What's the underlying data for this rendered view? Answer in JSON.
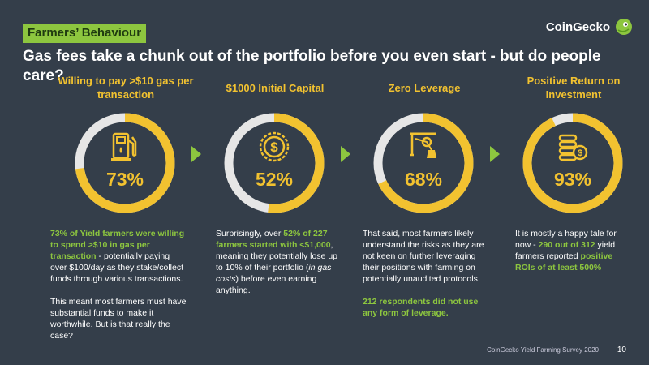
{
  "section_tag": "Farmers’ Behaviour",
  "brand": "CoinGecko",
  "headline": "Gas fees take a chunk out of the portfolio before you even start - but do people care?",
  "columns": [
    {
      "title": "Willing to pay >$10 gas per transaction",
      "percent": 73,
      "percent_label": "73%",
      "icon": "gas-pump-icon"
    },
    {
      "title": "$1000 Initial Capital",
      "percent": 52,
      "percent_label": "52%",
      "icon": "dollar-coin-icon"
    },
    {
      "title": "Zero Leverage",
      "percent": 68,
      "percent_label": "68%",
      "icon": "lever-pulley-icon"
    },
    {
      "title": "Positive Return on Investment",
      "percent": 93,
      "percent_label": "93%",
      "icon": "coin-stack-icon"
    }
  ],
  "texts": {
    "c1_b1": "73% of Yield farmers were willing to spend >$10 in gas per transaction",
    "c1_p1": " - potentially paying over $100/day as they stake/collect funds through various transactions.",
    "c1_p2": "This meant most farmers must have substantial funds to make it worthwhile. But is that really the case?",
    "c2_p1": "Surprisingly, over ",
    "c2_b1": "52% of 227 farmers started with <$1,000",
    "c2_p2": ", meaning they potentially lose up to 10% of their portfolio (",
    "c2_i1": "in gas costs",
    "c2_p3": ") before even earning anything.",
    "c3_p1": "That said, most farmers likely understand the risks as they are not keen on further leveraging their positions with farming on potentially unaudited protocols.",
    "c3_b1": "212 respondents did not use any form of leverage.",
    "c4_p1": "It is mostly a happy tale for now - ",
    "c4_b1": "290 out of 312",
    "c4_p2": " yield farmers reported ",
    "c4_b2": "positive ROIs of at least 500%"
  },
  "footer": "CoinGecko Yield Farming Survey 2020",
  "page_number": "10",
  "colors": {
    "background": "#343e4a",
    "accent": "#f2c230",
    "green": "#8dc63f",
    "ring_track": "#e6e6e6"
  }
}
